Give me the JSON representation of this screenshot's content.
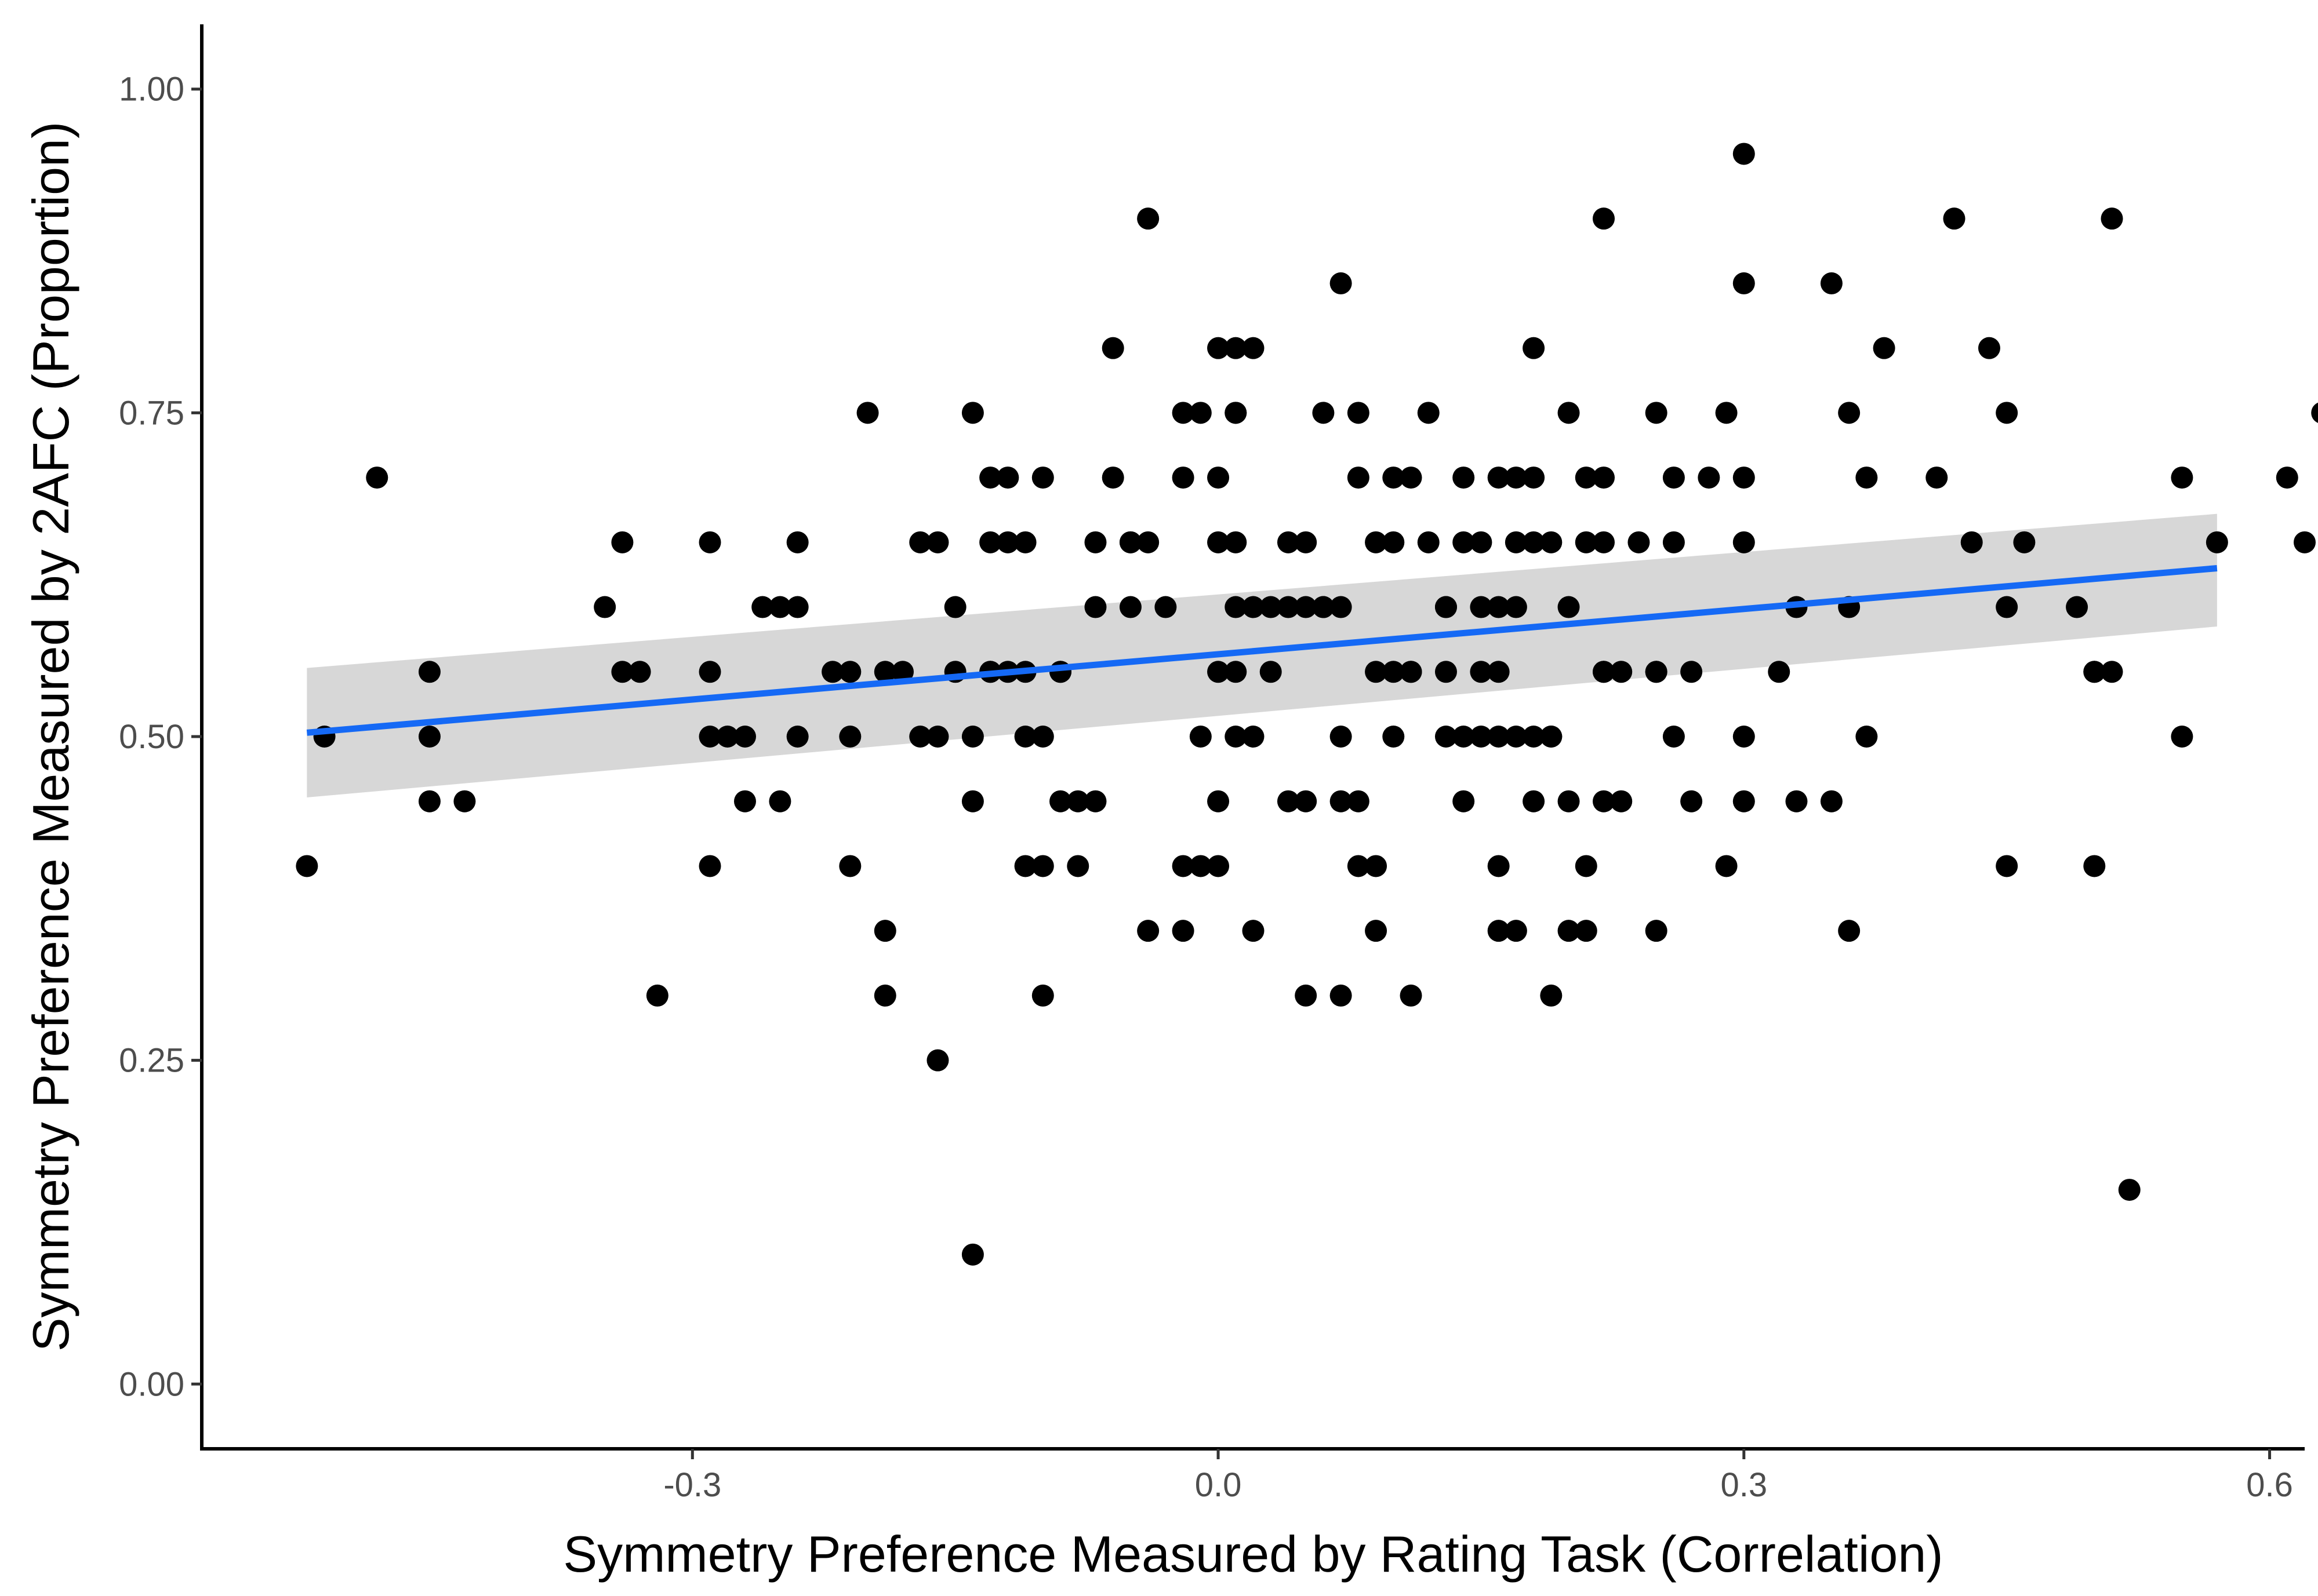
{
  "chart_data": {
    "type": "scatter",
    "title": "",
    "xlabel": "Symmetry Preference Measured by Rating Task (Correlation)",
    "ylabel": "Symmetry Preference Measured by 2AFC (Proportion)",
    "xlim": [
      -0.58,
      0.62
    ],
    "ylim": [
      -0.05,
      1.05
    ],
    "grid": false,
    "x_ticks": [
      -0.3,
      0.0,
      0.3,
      0.6
    ],
    "x_tick_labels": [
      "-0.3",
      "0.0",
      "0.3",
      "0.6"
    ],
    "y_ticks": [
      0.0,
      0.25,
      0.5,
      0.75,
      1.0
    ],
    "y_tick_labels": [
      "0.00",
      "0.25",
      "0.50",
      "0.75",
      "1.00"
    ],
    "colors": {
      "points": "#000000",
      "fit_line": "#1569f5",
      "confidence_band": "#bdbdbd",
      "axis": "#000000",
      "tick_label": "#4d4d4d"
    },
    "fit_line": {
      "x": [
        -0.52,
        0.57
      ],
      "y": [
        0.503,
        0.63
      ],
      "ci_lower": [
        0.453,
        0.585
      ],
      "ci_upper": [
        0.553,
        0.672
      ]
    },
    "points": [
      [
        -0.52,
        0.4
      ],
      [
        -0.51,
        0.5
      ],
      [
        -0.48,
        0.7
      ],
      [
        -0.45,
        0.55
      ],
      [
        -0.45,
        0.45
      ],
      [
        -0.45,
        0.5
      ],
      [
        -0.43,
        0.45
      ],
      [
        -0.35,
        0.6
      ],
      [
        -0.34,
        0.65
      ],
      [
        -0.34,
        0.55
      ],
      [
        -0.33,
        0.55
      ],
      [
        -0.32,
        0.3
      ],
      [
        -0.29,
        0.5
      ],
      [
        -0.29,
        0.55
      ],
      [
        -0.29,
        0.65
      ],
      [
        -0.29,
        0.4
      ],
      [
        -0.28,
        0.5
      ],
      [
        -0.27,
        0.5
      ],
      [
        -0.27,
        0.45
      ],
      [
        -0.26,
        0.6
      ],
      [
        -0.25,
        0.6
      ],
      [
        -0.25,
        0.45
      ],
      [
        -0.24,
        0.5
      ],
      [
        -0.24,
        0.6
      ],
      [
        -0.24,
        0.65
      ],
      [
        -0.22,
        0.55
      ],
      [
        -0.21,
        0.5
      ],
      [
        -0.21,
        0.4
      ],
      [
        -0.21,
        0.55
      ],
      [
        -0.2,
        0.75
      ],
      [
        -0.19,
        0.35
      ],
      [
        -0.19,
        0.55
      ],
      [
        -0.19,
        0.3
      ],
      [
        -0.18,
        0.55
      ],
      [
        -0.17,
        0.65
      ],
      [
        -0.17,
        0.5
      ],
      [
        -0.16,
        0.5
      ],
      [
        -0.16,
        0.65
      ],
      [
        -0.16,
        0.25
      ],
      [
        -0.15,
        0.55
      ],
      [
        -0.15,
        0.6
      ],
      [
        -0.14,
        0.45
      ],
      [
        -0.14,
        0.5
      ],
      [
        -0.14,
        0.75
      ],
      [
        -0.13,
        0.55
      ],
      [
        -0.14,
        0.1
      ],
      [
        -0.13,
        0.7
      ],
      [
        -0.13,
        0.55
      ],
      [
        -0.13,
        0.65
      ],
      [
        -0.12,
        0.7
      ],
      [
        -0.12,
        0.65
      ],
      [
        -0.12,
        0.55
      ],
      [
        -0.11,
        0.5
      ],
      [
        -0.11,
        0.55
      ],
      [
        -0.11,
        0.65
      ],
      [
        -0.11,
        0.4
      ],
      [
        -0.1,
        0.7
      ],
      [
        -0.1,
        0.5
      ],
      [
        -0.1,
        0.3
      ],
      [
        -0.1,
        0.4
      ],
      [
        -0.09,
        0.45
      ],
      [
        -0.09,
        0.55
      ],
      [
        -0.09,
        0.55
      ],
      [
        -0.08,
        0.4
      ],
      [
        -0.08,
        0.45
      ],
      [
        -0.07,
        0.6
      ],
      [
        -0.07,
        0.45
      ],
      [
        -0.07,
        0.65
      ],
      [
        -0.06,
        0.7
      ],
      [
        -0.06,
        0.8
      ],
      [
        -0.05,
        0.65
      ],
      [
        -0.05,
        0.6
      ],
      [
        -0.05,
        0.65
      ],
      [
        -0.04,
        0.65
      ],
      [
        -0.04,
        0.9
      ],
      [
        -0.04,
        0.35
      ],
      [
        -0.03,
        0.6
      ],
      [
        -0.02,
        0.7
      ],
      [
        -0.02,
        0.75
      ],
      [
        -0.02,
        0.4
      ],
      [
        -0.02,
        0.35
      ],
      [
        -0.01,
        0.75
      ],
      [
        -0.01,
        0.5
      ],
      [
        -0.01,
        0.4
      ],
      [
        0.0,
        0.8
      ],
      [
        0.0,
        0.7
      ],
      [
        0.0,
        0.65
      ],
      [
        0.0,
        0.55
      ],
      [
        0.0,
        0.45
      ],
      [
        0.0,
        0.4
      ],
      [
        0.01,
        0.75
      ],
      [
        0.01,
        0.65
      ],
      [
        0.01,
        0.55
      ],
      [
        0.01,
        0.5
      ],
      [
        0.01,
        0.8
      ],
      [
        0.01,
        0.6
      ],
      [
        0.01,
        0.75
      ],
      [
        0.02,
        0.6
      ],
      [
        0.02,
        0.5
      ],
      [
        0.02,
        0.8
      ],
      [
        0.02,
        0.35
      ],
      [
        0.03,
        0.55
      ],
      [
        0.03,
        0.6
      ],
      [
        0.04,
        0.65
      ],
      [
        0.04,
        0.45
      ],
      [
        0.04,
        0.6
      ],
      [
        0.05,
        0.65
      ],
      [
        0.05,
        0.6
      ],
      [
        0.05,
        0.45
      ],
      [
        0.05,
        0.3
      ],
      [
        0.06,
        0.6
      ],
      [
        0.06,
        0.75
      ],
      [
        0.06,
        0.6
      ],
      [
        0.07,
        0.5
      ],
      [
        0.07,
        0.85
      ],
      [
        0.07,
        0.6
      ],
      [
        0.07,
        0.45
      ],
      [
        0.07,
        0.3
      ],
      [
        0.08,
        0.7
      ],
      [
        0.08,
        0.75
      ],
      [
        0.08,
        0.45
      ],
      [
        0.08,
        0.4
      ],
      [
        0.09,
        0.65
      ],
      [
        0.09,
        0.35
      ],
      [
        0.09,
        0.55
      ],
      [
        0.09,
        0.4
      ],
      [
        0.1,
        0.7
      ],
      [
        0.1,
        0.5
      ],
      [
        0.1,
        0.55
      ],
      [
        0.1,
        0.65
      ],
      [
        0.11,
        0.55
      ],
      [
        0.11,
        0.7
      ],
      [
        0.11,
        0.55
      ],
      [
        0.11,
        0.3
      ],
      [
        0.12,
        0.65
      ],
      [
        0.12,
        0.75
      ],
      [
        0.13,
        0.5
      ],
      [
        0.13,
        0.6
      ],
      [
        0.13,
        0.55
      ],
      [
        0.13,
        0.6
      ],
      [
        0.14,
        0.7
      ],
      [
        0.14,
        0.5
      ],
      [
        0.14,
        0.65
      ],
      [
        0.14,
        0.45
      ],
      [
        0.15,
        0.5
      ],
      [
        0.15,
        0.55
      ],
      [
        0.15,
        0.6
      ],
      [
        0.15,
        0.65
      ],
      [
        0.16,
        0.7
      ],
      [
        0.16,
        0.5
      ],
      [
        0.16,
        0.6
      ],
      [
        0.16,
        0.55
      ],
      [
        0.16,
        0.4
      ],
      [
        0.16,
        0.35
      ],
      [
        0.17,
        0.7
      ],
      [
        0.17,
        0.65
      ],
      [
        0.17,
        0.6
      ],
      [
        0.17,
        0.5
      ],
      [
        0.17,
        0.35
      ],
      [
        0.18,
        0.65
      ],
      [
        0.18,
        0.45
      ],
      [
        0.18,
        0.5
      ],
      [
        0.18,
        0.7
      ],
      [
        0.18,
        0.8
      ],
      [
        0.19,
        0.65
      ],
      [
        0.19,
        0.5
      ],
      [
        0.19,
        0.3
      ],
      [
        0.19,
        0.5
      ],
      [
        0.2,
        0.75
      ],
      [
        0.2,
        0.6
      ],
      [
        0.2,
        0.45
      ],
      [
        0.2,
        0.35
      ],
      [
        0.21,
        0.7
      ],
      [
        0.21,
        0.65
      ],
      [
        0.21,
        0.4
      ],
      [
        0.21,
        0.35
      ],
      [
        0.22,
        0.7
      ],
      [
        0.22,
        0.65
      ],
      [
        0.22,
        0.55
      ],
      [
        0.22,
        0.55
      ],
      [
        0.22,
        0.45
      ],
      [
        0.22,
        0.9
      ],
      [
        0.23,
        0.55
      ],
      [
        0.23,
        0.45
      ],
      [
        0.24,
        0.65
      ],
      [
        0.25,
        0.55
      ],
      [
        0.25,
        0.75
      ],
      [
        0.25,
        0.35
      ],
      [
        0.25,
        0.55
      ],
      [
        0.26,
        0.7
      ],
      [
        0.26,
        0.65
      ],
      [
        0.26,
        0.5
      ],
      [
        0.27,
        0.55
      ],
      [
        0.27,
        0.45
      ],
      [
        0.28,
        0.7
      ],
      [
        0.29,
        0.75
      ],
      [
        0.29,
        0.4
      ],
      [
        0.3,
        0.95
      ],
      [
        0.3,
        0.7
      ],
      [
        0.3,
        0.65
      ],
      [
        0.3,
        0.5
      ],
      [
        0.3,
        0.45
      ],
      [
        0.3,
        0.85
      ],
      [
        0.32,
        0.55
      ],
      [
        0.33,
        0.6
      ],
      [
        0.33,
        0.45
      ],
      [
        0.35,
        0.85
      ],
      [
        0.35,
        0.45
      ],
      [
        0.36,
        0.6
      ],
      [
        0.36,
        0.35
      ],
      [
        0.36,
        0.75
      ],
      [
        0.37,
        0.5
      ],
      [
        0.37,
        0.7
      ],
      [
        0.38,
        0.8
      ],
      [
        0.41,
        0.7
      ],
      [
        0.42,
        0.9
      ],
      [
        0.43,
        0.65
      ],
      [
        0.44,
        0.8
      ],
      [
        0.45,
        0.6
      ],
      [
        0.45,
        0.75
      ],
      [
        0.45,
        0.4
      ],
      [
        0.46,
        0.65
      ],
      [
        0.49,
        0.6
      ],
      [
        0.5,
        0.55
      ],
      [
        0.5,
        0.55
      ],
      [
        0.5,
        0.4
      ],
      [
        0.51,
        0.9
      ],
      [
        0.51,
        0.55
      ],
      [
        0.52,
        0.15
      ],
      [
        0.55,
        0.7
      ],
      [
        0.55,
        0.5
      ],
      [
        0.57,
        0.65
      ],
      [
        0.61,
        0.7
      ],
      [
        0.62,
        0.65
      ],
      [
        0.63,
        0.75
      ]
    ]
  }
}
